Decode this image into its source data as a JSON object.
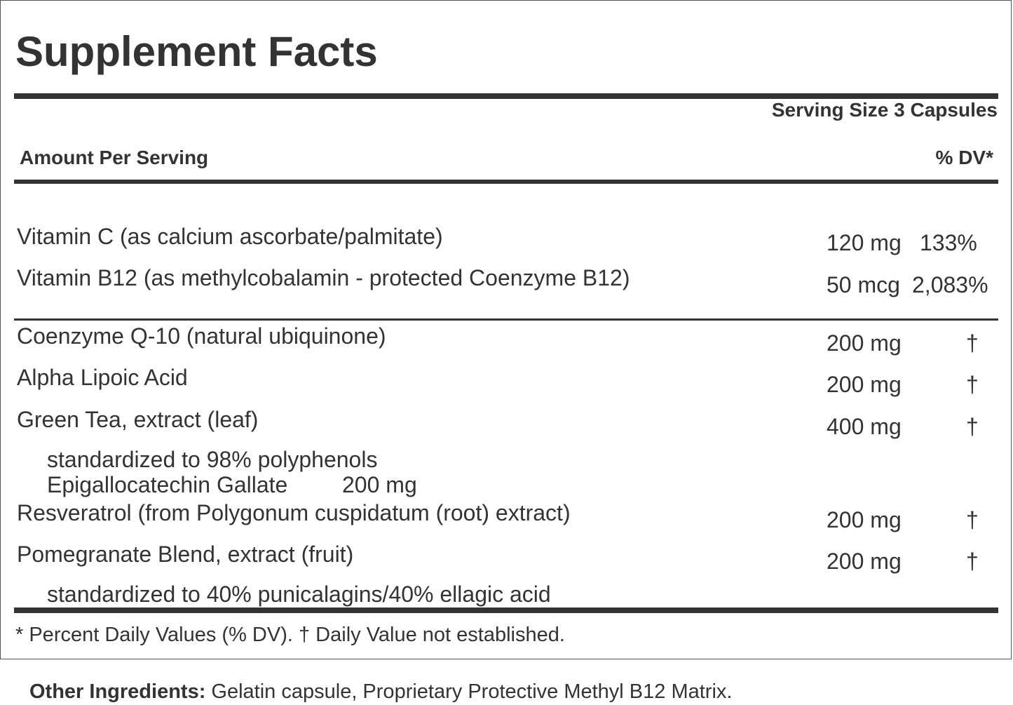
{
  "header": {
    "title": "Supplement Facts",
    "serving_size": "Serving Size 3 Capsules",
    "amount_per_serving": "Amount Per Serving",
    "dv_header": "% DV*"
  },
  "rows": [
    {
      "name": "Vitamin C (as calcium ascorbate/palmitate)",
      "amount": "120 mg",
      "dv": "133%"
    },
    {
      "name": "Vitamin B12 (as methylcobalamin - protected Coenzyme B12)",
      "amount": "50 mcg",
      "dv": "2,083%"
    },
    {
      "name": "Coenzyme Q-10 (natural ubiquinone)",
      "amount": "200 mg",
      "dv": "†"
    },
    {
      "name": "Alpha Lipoic Acid",
      "amount": "200 mg",
      "dv": "†"
    },
    {
      "name": "Green Tea, extract (leaf)",
      "amount": "400 mg",
      "dv": "†",
      "subs": [
        {
          "name": "standardized to 98% polyphenols"
        },
        {
          "name": "Epigallocatechin Gallate",
          "amount": "200 mg"
        }
      ]
    },
    {
      "name": "Resveratrol (from Polygonum cuspidatum (root) extract)",
      "amount": "200 mg",
      "dv": "†"
    },
    {
      "name": "Pomegranate Blend, extract (fruit)",
      "amount": "200 mg",
      "dv": "†",
      "subs": [
        {
          "name": "standardized to 40% punicalagins/40% ellagic acid"
        }
      ]
    }
  ],
  "footnote": "* Percent Daily Values (% DV). † Daily Value not established.",
  "other_ingredients": {
    "label": "Other Ingredients:",
    "text": "Gelatin capsule, Proprietary Protective Methyl B12 Matrix."
  }
}
